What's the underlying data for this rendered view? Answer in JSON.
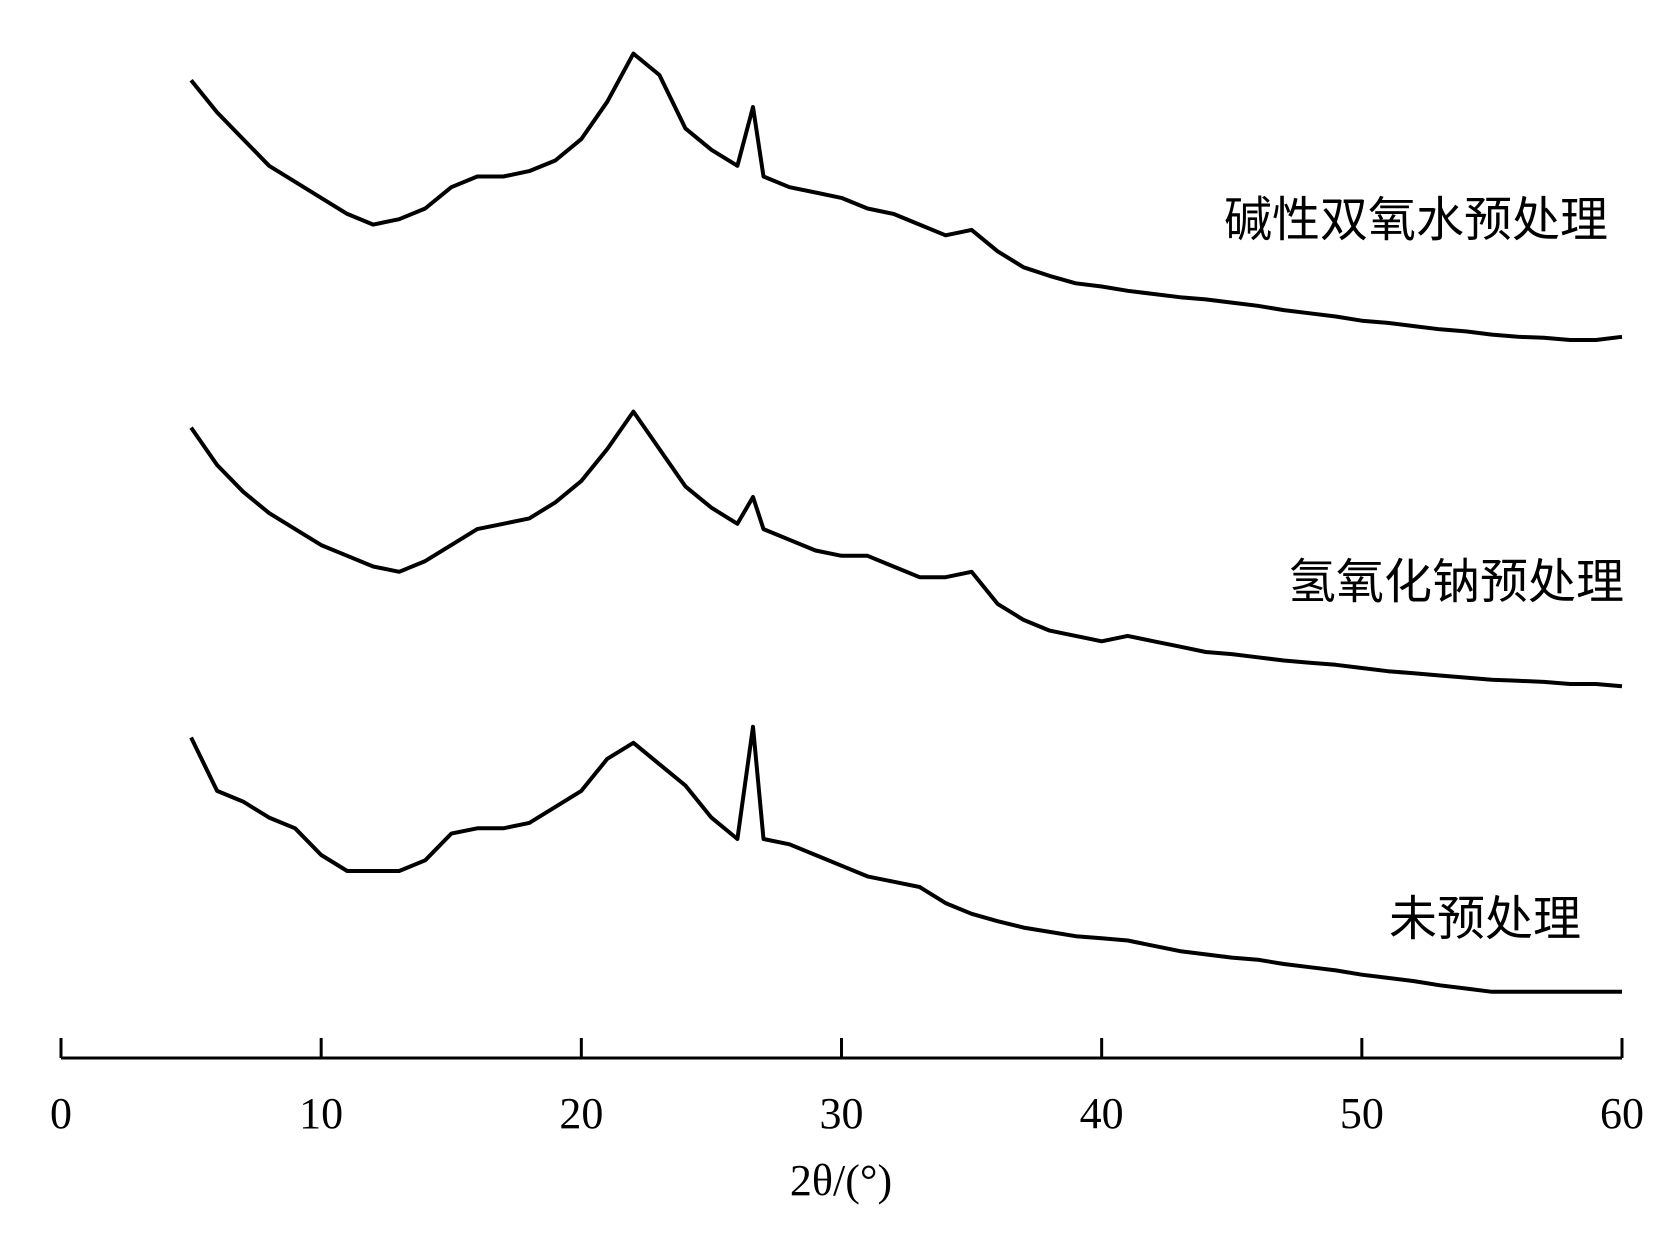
{
  "chart_data": {
    "type": "line",
    "x_label": "2θ/(°)",
    "x": [
      5,
      6,
      7,
      8,
      9,
      10,
      11,
      12,
      13,
      14,
      15,
      16,
      17,
      18,
      19,
      20,
      21,
      22,
      23,
      24,
      25,
      26,
      26.6,
      27,
      28,
      29,
      30,
      31,
      32,
      33,
      34,
      35,
      36,
      37,
      38,
      39,
      40,
      41,
      42,
      43,
      44,
      45,
      46,
      47,
      48,
      49,
      50,
      51,
      52,
      53,
      54,
      55,
      56,
      57,
      58,
      59,
      60
    ],
    "series": [
      {
        "name": "碱性双氧水预处理",
        "color": "#000000",
        "values": [
          915,
          885,
          860,
          835,
          820,
          805,
          790,
          780,
          785,
          795,
          815,
          825,
          825,
          830,
          840,
          860,
          895,
          940,
          920,
          870,
          850,
          835,
          890,
          825,
          815,
          810,
          805,
          795,
          790,
          780,
          770,
          775,
          755,
          740,
          732,
          725,
          722,
          718,
          715,
          712,
          710,
          707,
          704,
          700,
          697,
          694,
          690,
          688,
          685,
          682,
          680,
          677,
          675,
          674,
          672,
          672,
          675
        ]
      },
      {
        "name": "氢氧化钠预处理",
        "color": "#000000",
        "values": [
          590,
          555,
          530,
          510,
          495,
          480,
          470,
          460,
          455,
          465,
          480,
          495,
          500,
          505,
          520,
          540,
          570,
          605,
          570,
          535,
          515,
          500,
          525,
          495,
          485,
          475,
          470,
          470,
          460,
          450,
          450,
          455,
          425,
          410,
          400,
          395,
          390,
          395,
          390,
          385,
          380,
          378,
          375,
          372,
          370,
          368,
          365,
          362,
          360,
          358,
          356,
          354,
          353,
          352,
          350,
          350,
          348
        ]
      },
      {
        "name": "未预处理",
        "color": "#000000",
        "values": [
          300,
          250,
          240,
          225,
          215,
          190,
          175,
          175,
          175,
          185,
          210,
          215,
          215,
          220,
          235,
          250,
          280,
          295,
          275,
          255,
          225,
          205,
          310,
          205,
          200,
          190,
          180,
          170,
          165,
          160,
          145,
          135,
          128,
          122,
          118,
          114,
          112,
          110,
          105,
          100,
          97,
          94,
          92,
          88,
          85,
          82,
          78,
          75,
          72,
          68,
          65,
          62,
          62,
          62,
          62,
          62,
          62
        ]
      }
    ],
    "xlim": [
      0,
      60
    ],
    "xticks": [
      0,
      10,
      20,
      30,
      40,
      50,
      60
    ],
    "ylim": [
      0,
      1000
    ]
  }
}
